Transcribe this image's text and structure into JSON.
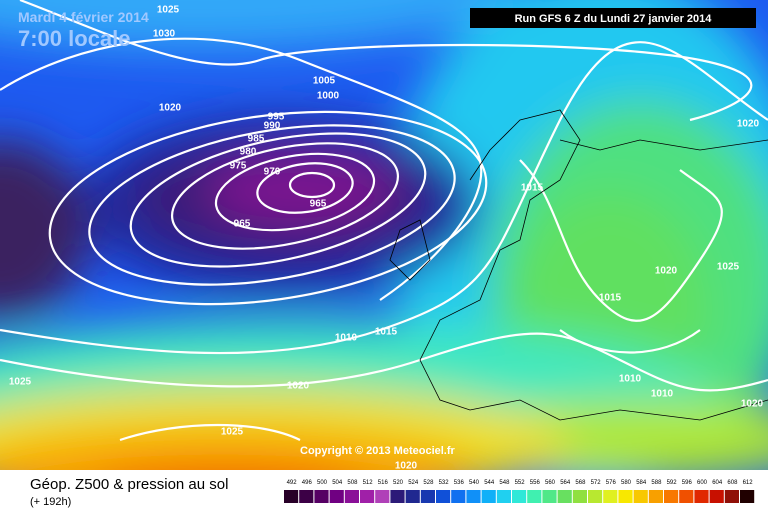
{
  "header": {
    "date": "Mardi 4 février 2014",
    "time": "7:00 locale",
    "run": "Run GFS 6 Z du Lundi 27 janvier 2014"
  },
  "isobar_labels": [
    1025,
    1030,
    1005,
    1000,
    1020,
    995,
    990,
    985,
    980,
    975,
    970,
    965,
    965,
    1020,
    1015,
    1020,
    1025,
    1015,
    1010,
    1015,
    1025,
    1020,
    1010,
    1010,
    1020,
    1025,
    1020
  ],
  "copyright": "Copyright © 2013 Meteociel.fr",
  "footer": {
    "title": "Géop. Z500 & pression au sol",
    "lead": "(+ 192h)"
  },
  "scale": {
    "values": [
      492,
      496,
      500,
      504,
      508,
      512,
      516,
      520,
      524,
      528,
      532,
      536,
      540,
      544,
      548,
      552,
      556,
      560,
      564,
      568,
      572,
      576,
      580,
      584,
      588,
      592,
      596,
      600,
      604,
      608,
      612
    ],
    "colors": [
      "#280028",
      "#3c0046",
      "#560064",
      "#700082",
      "#8a1098",
      "#a020a8",
      "#b040b8",
      "#2c1a78",
      "#202890",
      "#1838b0",
      "#1050d8",
      "#1070f0",
      "#1090f8",
      "#10b0f8",
      "#20d0f0",
      "#30e8d8",
      "#40f0b0",
      "#50e888",
      "#68e060",
      "#90e040",
      "#b8e830",
      "#e0f020",
      "#f8e800",
      "#f8c800",
      "#f8a000",
      "#f87800",
      "#f05000",
      "#e02800",
      "#c81000",
      "#901008",
      "#200000"
    ]
  }
}
